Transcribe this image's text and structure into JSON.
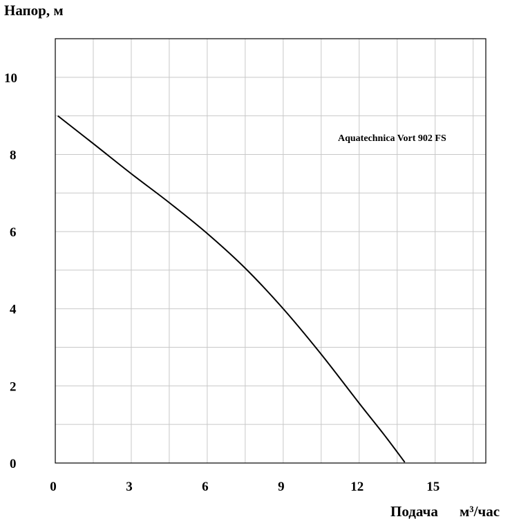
{
  "chart_data": {
    "type": "line",
    "ylabel": "Напор, м",
    "xlabel_main": "Подача",
    "xlabel_unit": "м³/час",
    "xlim": [
      0,
      17
    ],
    "ylim": [
      0,
      11
    ],
    "x_ticks": [
      0,
      3,
      6,
      9,
      12,
      15
    ],
    "y_ticks": [
      0,
      2,
      4,
      6,
      8,
      10
    ],
    "grid": true,
    "series": [
      {
        "name": "Aquatechnica Vort 902 FS",
        "x": [
          0.1,
          1.5,
          3,
          4.5,
          6,
          7.5,
          9,
          10.5,
          12,
          13,
          13.8
        ],
        "y": [
          9.0,
          8.28,
          7.5,
          6.75,
          5.95,
          5.05,
          4.0,
          2.82,
          1.55,
          0.72,
          0.02
        ]
      }
    ]
  }
}
